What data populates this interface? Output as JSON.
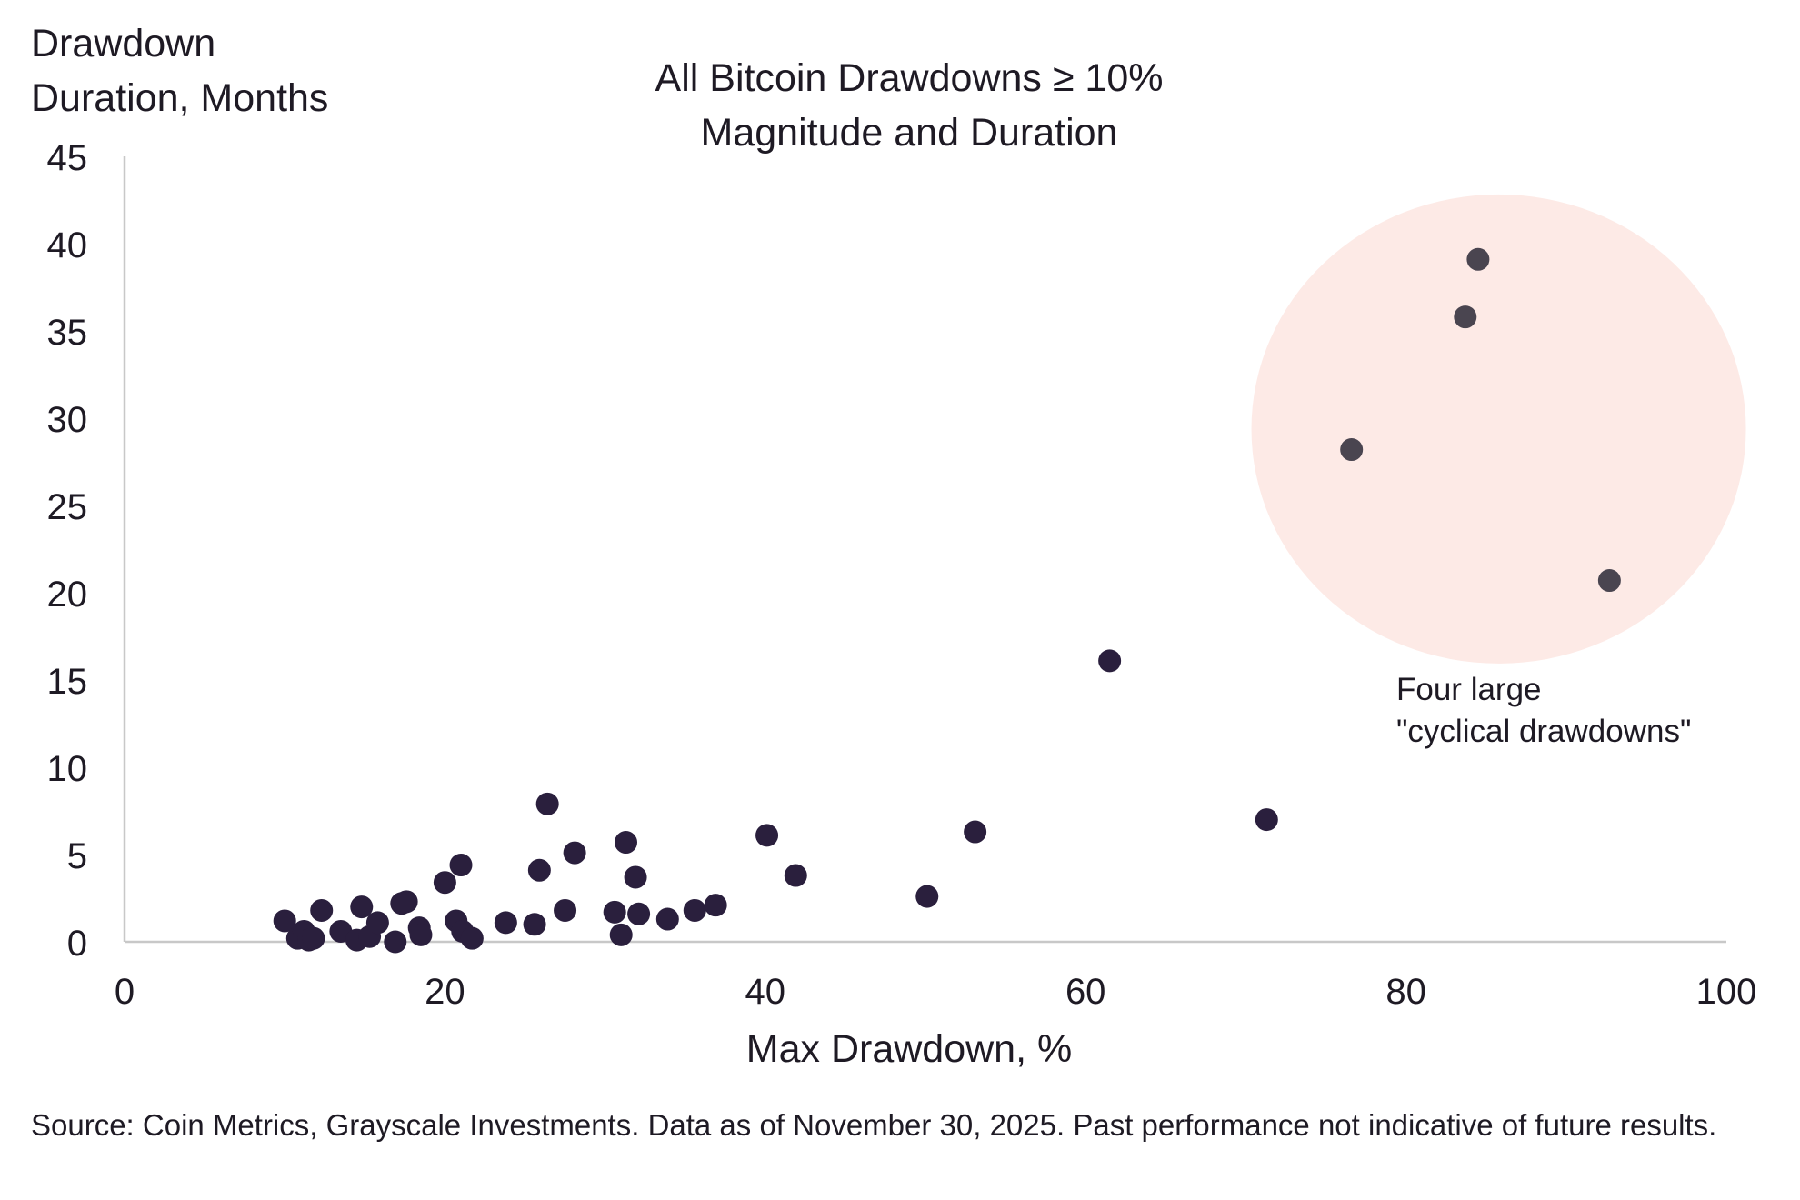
{
  "chart_data": {
    "type": "scatter",
    "title": [
      "All Bitcoin Drawdowns ≥ 10%",
      "Magnitude and Duration"
    ],
    "xlabel": "Max Drawdown, %",
    "ylabel": [
      "Drawdown",
      "Duration, Months"
    ],
    "xlim": [
      0,
      100
    ],
    "ylim": [
      0,
      45
    ],
    "x_ticks": [
      0,
      20,
      40,
      60,
      80,
      100
    ],
    "y_ticks": [
      0,
      5,
      10,
      15,
      20,
      25,
      30,
      35,
      40,
      45
    ],
    "grid": false,
    "legend": "none",
    "colors": {
      "points": "#2a1f3d",
      "highlight_points": "#4a4550",
      "highlight_region": "#fdeae6",
      "axis": "#c8c8c8",
      "text": "#1e1a24"
    },
    "points": [
      {
        "x": 10.0,
        "y": 1.2
      },
      {
        "x": 10.8,
        "y": 0.2
      },
      {
        "x": 11.2,
        "y": 0.6
      },
      {
        "x": 11.5,
        "y": 0.1
      },
      {
        "x": 11.8,
        "y": 0.2
      },
      {
        "x": 12.3,
        "y": 1.8
      },
      {
        "x": 13.5,
        "y": 0.6
      },
      {
        "x": 14.5,
        "y": 0.1
      },
      {
        "x": 14.8,
        "y": 2.0
      },
      {
        "x": 15.3,
        "y": 0.3
      },
      {
        "x": 15.8,
        "y": 1.1
      },
      {
        "x": 16.9,
        "y": 0.0
      },
      {
        "x": 17.3,
        "y": 2.2
      },
      {
        "x": 17.6,
        "y": 2.3
      },
      {
        "x": 18.4,
        "y": 0.8
      },
      {
        "x": 18.5,
        "y": 0.4
      },
      {
        "x": 20.0,
        "y": 3.4
      },
      {
        "x": 20.7,
        "y": 1.2
      },
      {
        "x": 21.0,
        "y": 4.4
      },
      {
        "x": 21.1,
        "y": 0.6
      },
      {
        "x": 21.7,
        "y": 0.2
      },
      {
        "x": 23.8,
        "y": 1.1
      },
      {
        "x": 25.6,
        "y": 1.0
      },
      {
        "x": 25.9,
        "y": 4.1
      },
      {
        "x": 26.4,
        "y": 7.9
      },
      {
        "x": 27.5,
        "y": 1.8
      },
      {
        "x": 28.1,
        "y": 5.1
      },
      {
        "x": 30.6,
        "y": 1.7
      },
      {
        "x": 31.0,
        "y": 0.4
      },
      {
        "x": 31.3,
        "y": 5.7
      },
      {
        "x": 31.9,
        "y": 3.7
      },
      {
        "x": 32.1,
        "y": 1.6
      },
      {
        "x": 33.9,
        "y": 1.3
      },
      {
        "x": 35.6,
        "y": 1.8
      },
      {
        "x": 36.9,
        "y": 2.1
      },
      {
        "x": 40.1,
        "y": 6.1
      },
      {
        "x": 41.9,
        "y": 3.8
      },
      {
        "x": 50.1,
        "y": 2.6
      },
      {
        "x": 53.1,
        "y": 6.3
      },
      {
        "x": 61.5,
        "y": 16.1
      },
      {
        "x": 71.3,
        "y": 7.0
      }
    ],
    "highlight_points": [
      {
        "x": 76.6,
        "y": 28.2
      },
      {
        "x": 83.7,
        "y": 35.8
      },
      {
        "x": 84.5,
        "y": 39.1
      },
      {
        "x": 92.7,
        "y": 20.7
      }
    ],
    "annotation": [
      "Four large",
      "\"cyclical drawdowns\""
    ]
  },
  "source": "Source: Coin Metrics, Grayscale Investments. Data as of November 30, 2025. Past performance not indicative of future results."
}
